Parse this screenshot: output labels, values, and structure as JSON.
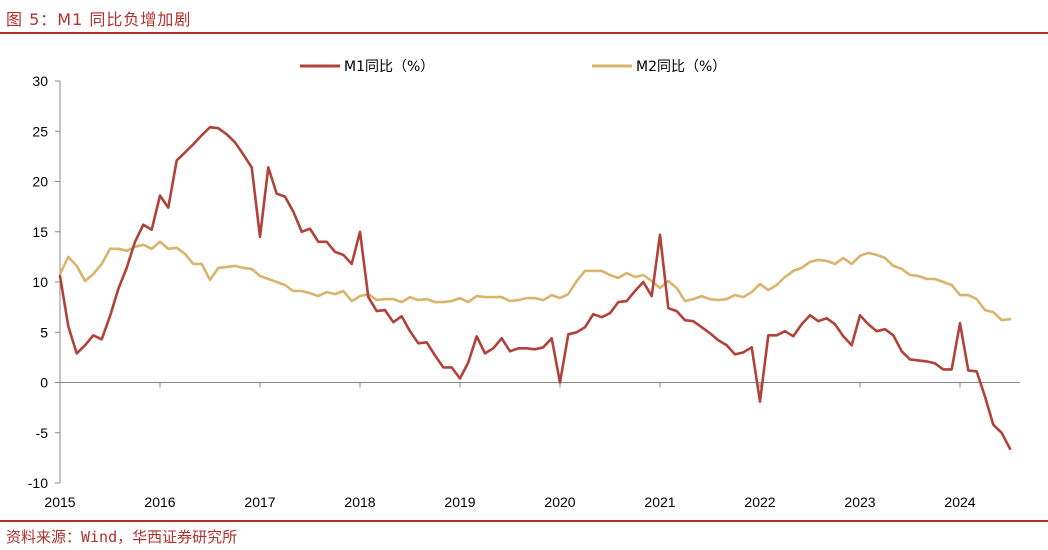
{
  "figure_title": "图 5：M1 同比负增加剧",
  "source": "资料来源：Wind，华西证券研究所",
  "chart_data": {
    "type": "line",
    "title": "M1同比负增加剧",
    "xlabel": "",
    "ylabel": "",
    "ylim": [
      -10,
      30
    ],
    "yticks": [
      30,
      25,
      20,
      15,
      10,
      5,
      0,
      -5,
      -10
    ],
    "xlim": [
      2015.0,
      2024.6
    ],
    "xticks": [
      "2015",
      "2016",
      "2017",
      "2018",
      "2019",
      "2020",
      "2021",
      "2022",
      "2023",
      "2024"
    ],
    "legend_position": "top",
    "colors": {
      "m1": "#b0423a",
      "m2": "#d8b46c"
    },
    "series": [
      {
        "name": "M1同比（%）",
        "color": "#b0423a",
        "x": [
          2015.0,
          2015.083,
          2015.167,
          2015.25,
          2015.333,
          2015.417,
          2015.5,
          2015.583,
          2015.667,
          2015.75,
          2015.833,
          2015.917,
          2016.0,
          2016.083,
          2016.167,
          2016.25,
          2016.333,
          2016.417,
          2016.5,
          2016.583,
          2016.667,
          2016.75,
          2016.833,
          2016.917,
          2017.0,
          2017.083,
          2017.167,
          2017.25,
          2017.333,
          2017.417,
          2017.5,
          2017.583,
          2017.667,
          2017.75,
          2017.833,
          2017.917,
          2018.0,
          2018.083,
          2018.167,
          2018.25,
          2018.333,
          2018.417,
          2018.5,
          2018.583,
          2018.667,
          2018.75,
          2018.833,
          2018.917,
          2019.0,
          2019.083,
          2019.167,
          2019.25,
          2019.333,
          2019.417,
          2019.5,
          2019.583,
          2019.667,
          2019.75,
          2019.833,
          2019.917,
          2020.0,
          2020.083,
          2020.167,
          2020.25,
          2020.333,
          2020.417,
          2020.5,
          2020.583,
          2020.667,
          2020.75,
          2020.833,
          2020.917,
          2021.0,
          2021.083,
          2021.167,
          2021.25,
          2021.333,
          2021.417,
          2021.5,
          2021.583,
          2021.667,
          2021.75,
          2021.833,
          2021.917,
          2022.0,
          2022.083,
          2022.167,
          2022.25,
          2022.333,
          2022.417,
          2022.5,
          2022.583,
          2022.667,
          2022.75,
          2022.833,
          2022.917,
          2023.0,
          2023.083,
          2023.167,
          2023.25,
          2023.333,
          2023.417,
          2023.5,
          2023.583,
          2023.667,
          2023.75,
          2023.833,
          2023.917,
          2024.0,
          2024.083,
          2024.167,
          2024.25,
          2024.333,
          2024.417,
          2024.5
        ],
        "values": [
          10.6,
          5.6,
          2.9,
          3.7,
          4.7,
          4.3,
          6.6,
          9.3,
          11.4,
          14.0,
          15.7,
          15.2,
          18.6,
          17.4,
          22.1,
          22.9,
          23.7,
          24.6,
          25.4,
          25.3,
          24.7,
          23.9,
          22.7,
          21.4,
          14.5,
          21.4,
          18.8,
          18.5,
          17.0,
          15.0,
          15.3,
          14.0,
          14.0,
          13.0,
          12.7,
          11.8,
          15.0,
          8.5,
          7.1,
          7.2,
          6.0,
          6.6,
          5.1,
          3.9,
          4.0,
          2.7,
          1.5,
          1.5,
          0.4,
          2.0,
          4.6,
          2.9,
          3.4,
          4.4,
          3.1,
          3.4,
          3.4,
          3.3,
          3.5,
          4.4,
          0.0,
          4.8,
          5.0,
          5.5,
          6.8,
          6.5,
          6.9,
          8.0,
          8.1,
          9.1,
          10.0,
          8.6,
          14.7,
          7.4,
          7.1,
          6.2,
          6.1,
          5.5,
          4.9,
          4.2,
          3.7,
          2.8,
          3.0,
          3.5,
          -1.9,
          4.7,
          4.7,
          5.1,
          4.6,
          5.8,
          6.7,
          6.1,
          6.4,
          5.8,
          4.6,
          3.7,
          6.7,
          5.8,
          5.1,
          5.3,
          4.7,
          3.1,
          2.3,
          2.2,
          2.1,
          1.9,
          1.3,
          1.3,
          5.9,
          1.2,
          1.1,
          -1.4,
          -4.2,
          -5.0,
          -6.6
        ]
      },
      {
        "name": "M2同比（%）",
        "color": "#d8b46c",
        "x": [
          2015.0,
          2015.083,
          2015.167,
          2015.25,
          2015.333,
          2015.417,
          2015.5,
          2015.583,
          2015.667,
          2015.75,
          2015.833,
          2015.917,
          2016.0,
          2016.083,
          2016.167,
          2016.25,
          2016.333,
          2016.417,
          2016.5,
          2016.583,
          2016.667,
          2016.75,
          2016.833,
          2016.917,
          2017.0,
          2017.083,
          2017.167,
          2017.25,
          2017.333,
          2017.417,
          2017.5,
          2017.583,
          2017.667,
          2017.75,
          2017.833,
          2017.917,
          2018.0,
          2018.083,
          2018.167,
          2018.25,
          2018.333,
          2018.417,
          2018.5,
          2018.583,
          2018.667,
          2018.75,
          2018.833,
          2018.917,
          2019.0,
          2019.083,
          2019.167,
          2019.25,
          2019.333,
          2019.417,
          2019.5,
          2019.583,
          2019.667,
          2019.75,
          2019.833,
          2019.917,
          2020.0,
          2020.083,
          2020.167,
          2020.25,
          2020.333,
          2020.417,
          2020.5,
          2020.583,
          2020.667,
          2020.75,
          2020.833,
          2020.917,
          2021.0,
          2021.083,
          2021.167,
          2021.25,
          2021.333,
          2021.417,
          2021.5,
          2021.583,
          2021.667,
          2021.75,
          2021.833,
          2021.917,
          2022.0,
          2022.083,
          2022.167,
          2022.25,
          2022.333,
          2022.417,
          2022.5,
          2022.583,
          2022.667,
          2022.75,
          2022.833,
          2022.917,
          2023.0,
          2023.083,
          2023.167,
          2023.25,
          2023.333,
          2023.417,
          2023.5,
          2023.583,
          2023.667,
          2023.75,
          2023.833,
          2023.917,
          2024.0,
          2024.083,
          2024.167,
          2024.25,
          2024.333,
          2024.417,
          2024.5
        ],
        "values": [
          10.8,
          12.5,
          11.6,
          10.1,
          10.8,
          11.8,
          13.3,
          13.3,
          13.1,
          13.5,
          13.7,
          13.3,
          14.0,
          13.3,
          13.4,
          12.8,
          11.8,
          11.8,
          10.2,
          11.4,
          11.5,
          11.6,
          11.4,
          11.3,
          10.6,
          10.3,
          10.0,
          9.7,
          9.1,
          9.1,
          8.9,
          8.6,
          9.0,
          8.8,
          9.1,
          8.1,
          8.6,
          8.8,
          8.2,
          8.3,
          8.3,
          8.0,
          8.5,
          8.2,
          8.3,
          8.0,
          8.0,
          8.1,
          8.4,
          8.0,
          8.6,
          8.5,
          8.5,
          8.5,
          8.1,
          8.2,
          8.4,
          8.4,
          8.2,
          8.7,
          8.4,
          8.8,
          10.1,
          11.1,
          11.1,
          11.1,
          10.7,
          10.4,
          10.9,
          10.5,
          10.7,
          10.1,
          9.4,
          10.1,
          9.4,
          8.1,
          8.3,
          8.6,
          8.3,
          8.2,
          8.3,
          8.7,
          8.5,
          9.0,
          9.8,
          9.2,
          9.7,
          10.5,
          11.1,
          11.4,
          12.0,
          12.2,
          12.1,
          11.8,
          12.4,
          11.8,
          12.6,
          12.9,
          12.7,
          12.4,
          11.6,
          11.3,
          10.7,
          10.6,
          10.3,
          10.3,
          10.0,
          9.7,
          8.7,
          8.7,
          8.3,
          7.2,
          7.0,
          6.2,
          6.3
        ]
      }
    ]
  }
}
